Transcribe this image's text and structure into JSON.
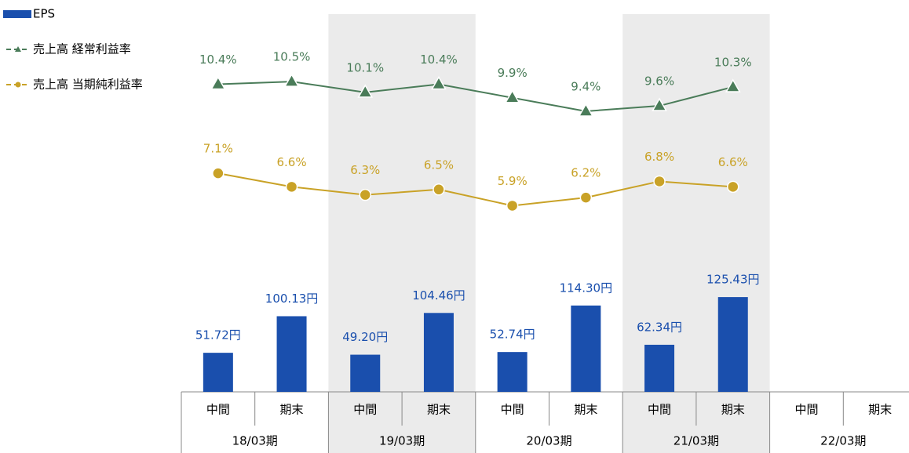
{
  "chart_data": {
    "type": "bar_line",
    "categories": [
      "中間",
      "期末",
      "中間",
      "期末",
      "中間",
      "期末",
      "中間",
      "期末",
      "中間",
      "期末"
    ],
    "groups": [
      "18/03期",
      "19/03期",
      "20/03期",
      "21/03期",
      "22/03期"
    ],
    "series": [
      {
        "name": "EPS",
        "type": "bar",
        "color": "#1a4fad",
        "axis": "y",
        "values": [
          51.72,
          100.13,
          49.2,
          104.46,
          52.74,
          114.3,
          62.34,
          125.43,
          null,
          null
        ],
        "value_labels": [
          "51.72円",
          "100.13円",
          "49.20円",
          "104.46円",
          "52.74円",
          "114.30円",
          "62.34円",
          "125.43円",
          null,
          null
        ]
      },
      {
        "name": "売上高 経常利益率",
        "type": "line",
        "marker": "triangle",
        "color": "#4a7c59",
        "axis": "y2",
        "values": [
          10.4,
          10.5,
          10.1,
          10.4,
          9.9,
          9.4,
          9.6,
          10.3,
          null,
          null
        ],
        "value_labels": [
          "10.4%",
          "10.5%",
          "10.1%",
          "10.4%",
          "9.9%",
          "9.4%",
          "9.6%",
          "10.3%",
          null,
          null
        ]
      },
      {
        "name": "売上高  当期純利益率",
        "type": "line",
        "marker": "circle",
        "color": "#c9a227",
        "axis": "y2",
        "values": [
          7.1,
          6.6,
          6.3,
          6.5,
          5.9,
          6.2,
          6.8,
          6.6,
          null,
          null
        ],
        "value_labels": [
          "7.1%",
          "6.6%",
          "6.3%",
          "6.5%",
          "5.9%",
          "6.2%",
          "6.8%",
          "6.6%",
          null,
          null
        ]
      }
    ],
    "ylim": [
      0,
      500
    ],
    "y2lim": [
      -1,
      13
    ],
    "legend": "top-left"
  }
}
